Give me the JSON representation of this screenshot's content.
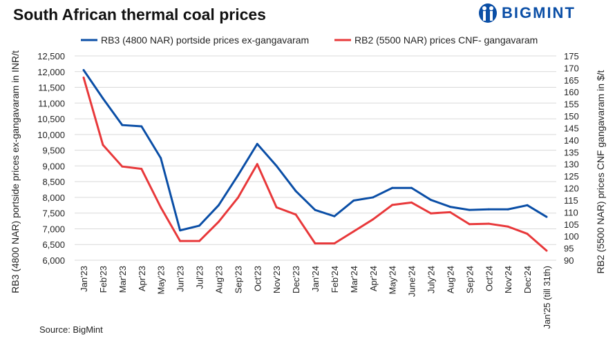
{
  "header": {
    "title": "South African thermal coal prices",
    "logo_text": "BIGMINT"
  },
  "footer": {
    "source": "Source: BigMint"
  },
  "chart_data": {
    "type": "line",
    "title": "South African thermal coal prices",
    "categories": [
      "Jan'23",
      "Feb'23",
      "Mar'23",
      "Apr'23",
      "May'23",
      "Jun'23",
      "Jul'23",
      "Aug'23",
      "Sep'23",
      "Oct'23",
      "Nov'23",
      "Dec'23",
      "Jan'24",
      "Feb'24",
      "Mar'24",
      "Apr'24",
      "May'24",
      "June'24",
      "July'24",
      "Aug'24",
      "Sep'24",
      "Oct'24",
      "Nov'24",
      "Dec'24",
      "Jan'25 (till 31th)"
    ],
    "ylabel": "RB3 (4800 NAR) portside prices ex-gangavaram in INR/t",
    "y2label": "RB2 (5500 NAR) prices CNF gangavaram in $/t",
    "ylim": [
      6000,
      12500
    ],
    "y_ticks": [
      "6,000",
      "6,500",
      "7,000",
      "7,500",
      "8,000",
      "8,500",
      "9,000",
      "9,500",
      "10,000",
      "10,500",
      "11,000",
      "11,500",
      "12,000",
      "12,500"
    ],
    "y2lim": [
      90,
      175
    ],
    "y2_ticks": [
      "90",
      "95",
      "100",
      "105",
      "110",
      "115",
      "120",
      "125",
      "130",
      "135",
      "140",
      "145",
      "150",
      "155",
      "160",
      "165",
      "170",
      "175"
    ],
    "grid": true,
    "legend": "top",
    "series": [
      {
        "name": "RB3 (4800 NAR) portside prices ex-gangavaram",
        "axis": "left",
        "color": "#0a4ea6",
        "values": [
          12050,
          11150,
          10300,
          10260,
          9250,
          6950,
          7100,
          7750,
          8700,
          9700,
          9000,
          8200,
          7600,
          7400,
          7900,
          8000,
          8300,
          8300,
          7920,
          7700,
          7600,
          7620,
          7620,
          7750,
          7380
        ]
      },
      {
        "name": "RB2 (5500 NAR) prices CNF- gangavaram",
        "axis": "right",
        "color": "#e8383a",
        "values": [
          166,
          138,
          129,
          128,
          112,
          98,
          98,
          106,
          116,
          130,
          112,
          109,
          97,
          97,
          102,
          107,
          113,
          114,
          109.5,
          110,
          105,
          105.2,
          104,
          101,
          94
        ]
      }
    ]
  }
}
